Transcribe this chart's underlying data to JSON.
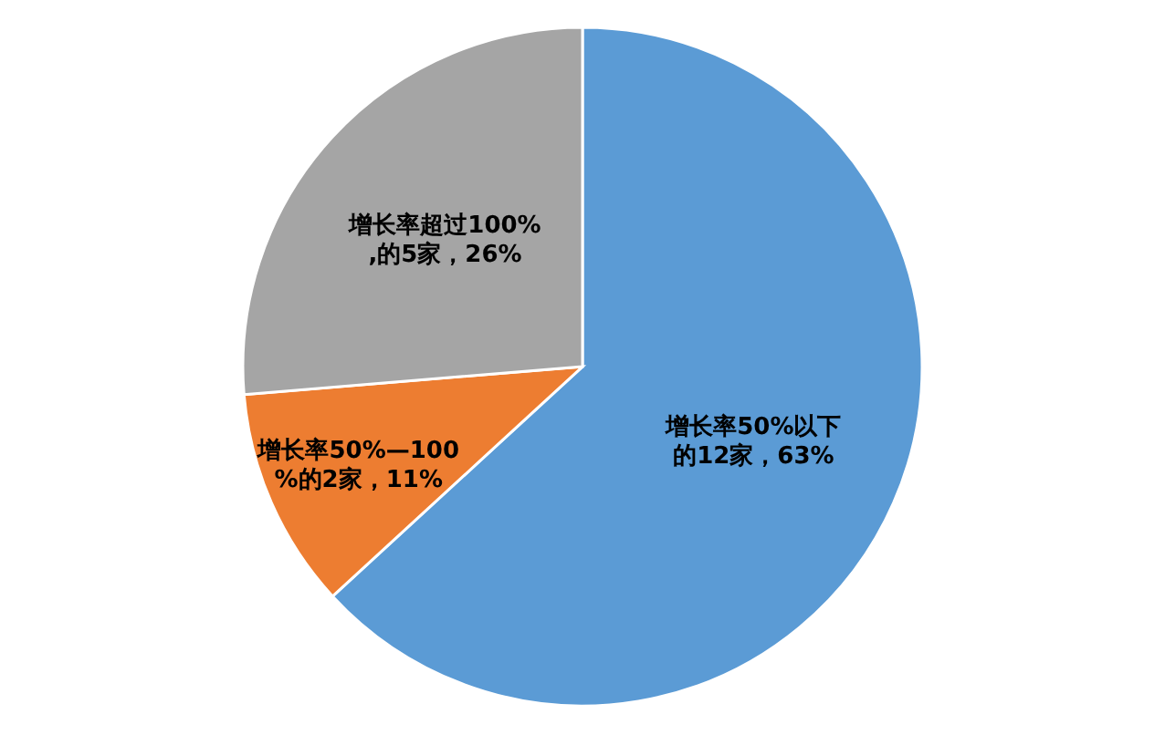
{
  "chart_data": {
    "type": "pie",
    "categories": [
      "增长率50%以下的12家，63%",
      "增长率50%—100%的2家，11%",
      "增长率超过100%,的5家，26%"
    ],
    "values": [
      12,
      2,
      5
    ],
    "colors": [
      "#5b9bd5",
      "#ed7d31",
      "#a5a5a5"
    ]
  }
}
